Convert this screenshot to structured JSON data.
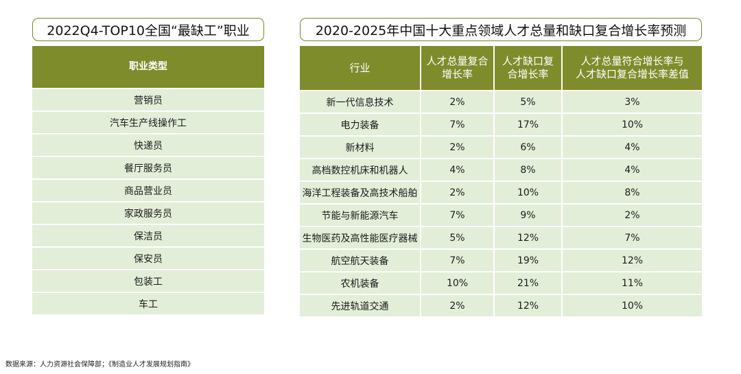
{
  "left": {
    "title": "2022Q4-TOP10全国“最缺工”职业",
    "header": "职业类型",
    "rows": [
      "营销员",
      "汽车生产线操作工",
      "快递员",
      "餐厅服务员",
      "商品营业员",
      "家政服务员",
      "保洁员",
      "保安员",
      "包装工",
      "车工"
    ]
  },
  "right": {
    "title": "2020-2025年中国十大重点领域人才总量和缺口复合增长率预测",
    "headers": {
      "industry": "行业",
      "total_growth_line1": "人才总量复合",
      "total_growth_line2": "增长率",
      "gap_growth_line1": "人才缺口复",
      "gap_growth_line2": "合增长率",
      "diff_line1": "人才总量符合增长率与",
      "diff_line2": "人才缺口复合增长率差值"
    },
    "rows": [
      {
        "industry": "新一代信息技术",
        "total": "2%",
        "gap": "5%",
        "diff": "3%"
      },
      {
        "industry": "电力装备",
        "total": "7%",
        "gap": "17%",
        "diff": "10%"
      },
      {
        "industry": "新材料",
        "total": "2%",
        "gap": "6%",
        "diff": "4%"
      },
      {
        "industry": "高档数控机床和机器人",
        "total": "4%",
        "gap": "8%",
        "diff": "4%"
      },
      {
        "industry": "海洋工程装备及高技术船舶",
        "total": "2%",
        "gap": "10%",
        "diff": "8%"
      },
      {
        "industry": "节能与新能源汽车",
        "total": "7%",
        "gap": "9%",
        "diff": "2%"
      },
      {
        "industry": "生物医药及高性能医疗器械",
        "total": "5%",
        "gap": "12%",
        "diff": "7%"
      },
      {
        "industry": "航空航天装备",
        "total": "7%",
        "gap": "19%",
        "diff": "12%"
      },
      {
        "industry": "农机装备",
        "total": "10%",
        "gap": "21%",
        "diff": "11%"
      },
      {
        "industry": "先进轨道交通",
        "total": "2%",
        "gap": "12%",
        "diff": "10%"
      }
    ]
  },
  "source": "数据来源：人力资源社会保障部；《制造业人才发展规划指南》",
  "colors": {
    "header_bg": "#7f8c2b",
    "cell_bg": "#e3eed9",
    "title_border": "#6b8a2a"
  }
}
